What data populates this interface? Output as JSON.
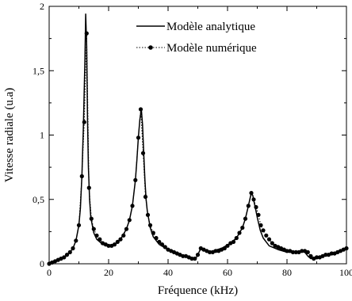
{
  "chart_data": {
    "type": "line",
    "title": "",
    "xlabel": "Fréquence (kHz)",
    "ylabel": "Vitesse radiale (u.a)",
    "xlim": [
      0,
      100
    ],
    "ylim": [
      0,
      2
    ],
    "x_ticks": [
      {
        "value": 0,
        "label": "0"
      },
      {
        "value": 20,
        "label": "20"
      },
      {
        "value": 40,
        "label": "40"
      },
      {
        "value": 60,
        "label": "60"
      },
      {
        "value": 80,
        "label": "80"
      },
      {
        "value": 100,
        "label": "100"
      }
    ],
    "y_ticks": [
      {
        "value": 0,
        "label": "0"
      },
      {
        "value": 0.5,
        "label": "0,5"
      },
      {
        "value": 1,
        "label": "1"
      },
      {
        "value": 1.5,
        "label": "1,5"
      },
      {
        "value": 2,
        "label": "2"
      }
    ],
    "grid": false,
    "legend_position": "top-right",
    "series": [
      {
        "name": "Modèle analytique",
        "style": "solid",
        "color": "#000000",
        "x": [
          0,
          3,
          5,
          7,
          8,
          9,
          10,
          10.5,
          11,
          11.5,
          12,
          12.3,
          12.6,
          12.9,
          13.2,
          13.6,
          14,
          15,
          16,
          18,
          20,
          22,
          24,
          26,
          27,
          28,
          29,
          29.5,
          30,
          30.5,
          31,
          31.4,
          31.8,
          32.2,
          32.6,
          33,
          34,
          35,
          37,
          40,
          43,
          46,
          48,
          49,
          50,
          51,
          52,
          53,
          55,
          58,
          61,
          63,
          65,
          66,
          67,
          67.5,
          68,
          68.5,
          69,
          69.5,
          70,
          71,
          72,
          74,
          77,
          80,
          83,
          85,
          86,
          87,
          88,
          90,
          93,
          96,
          100
        ],
        "y": [
          0.01,
          0.03,
          0.05,
          0.09,
          0.12,
          0.18,
          0.3,
          0.43,
          0.68,
          1.05,
          1.55,
          1.94,
          1.7,
          1.12,
          0.75,
          0.5,
          0.36,
          0.24,
          0.19,
          0.15,
          0.14,
          0.15,
          0.19,
          0.27,
          0.34,
          0.45,
          0.65,
          0.8,
          0.98,
          1.12,
          1.2,
          1.08,
          0.86,
          0.65,
          0.5,
          0.41,
          0.28,
          0.21,
          0.15,
          0.11,
          0.08,
          0.06,
          0.04,
          0.03,
          0.07,
          0.12,
          0.11,
          0.09,
          0.1,
          0.12,
          0.16,
          0.2,
          0.28,
          0.35,
          0.45,
          0.5,
          0.55,
          0.53,
          0.47,
          0.42,
          0.36,
          0.26,
          0.2,
          0.14,
          0.11,
          0.09,
          0.09,
          0.1,
          0.09,
          0.06,
          0.04,
          0.05,
          0.07,
          0.08,
          0.12
        ]
      },
      {
        "name": "Modèle numérique",
        "style": "dotted-markers",
        "color": "#000000",
        "x": [
          0,
          1,
          2,
          3,
          4,
          5,
          6,
          7,
          8,
          9,
          10,
          11,
          11.8,
          12.6,
          13.4,
          14.2,
          15,
          16,
          17,
          18,
          19,
          20,
          21,
          22,
          23,
          24,
          25,
          26,
          27,
          28,
          29,
          30,
          30.8,
          31.6,
          32.4,
          33.2,
          34,
          35,
          36,
          37,
          38,
          39,
          40,
          41,
          42,
          43,
          44,
          45,
          46,
          47,
          48,
          49,
          50,
          51,
          52,
          53,
          54,
          55,
          56,
          57,
          58,
          59,
          60,
          61,
          62,
          63,
          64,
          65,
          66,
          67,
          68,
          68.8,
          69.6,
          70.4,
          71.2,
          72,
          73,
          74,
          75,
          76,
          77,
          78,
          79,
          80,
          81,
          82,
          83,
          84,
          85,
          86,
          87,
          88,
          89,
          90,
          91,
          92,
          93,
          94,
          95,
          96,
          97,
          98,
          99,
          100
        ],
        "y": [
          0,
          0.01,
          0.02,
          0.03,
          0.04,
          0.05,
          0.07,
          0.09,
          0.12,
          0.18,
          0.3,
          0.68,
          1.1,
          1.79,
          0.59,
          0.35,
          0.27,
          0.22,
          0.19,
          0.16,
          0.15,
          0.14,
          0.14,
          0.15,
          0.17,
          0.19,
          0.22,
          0.27,
          0.34,
          0.45,
          0.65,
          0.98,
          1.2,
          0.86,
          0.52,
          0.38,
          0.3,
          0.24,
          0.2,
          0.17,
          0.15,
          0.13,
          0.11,
          0.1,
          0.09,
          0.08,
          0.07,
          0.06,
          0.06,
          0.05,
          0.04,
          0.04,
          0.07,
          0.12,
          0.11,
          0.1,
          0.09,
          0.09,
          0.1,
          0.1,
          0.11,
          0.12,
          0.14,
          0.16,
          0.17,
          0.2,
          0.24,
          0.28,
          0.35,
          0.45,
          0.55,
          0.5,
          0.44,
          0.38,
          0.3,
          0.26,
          0.22,
          0.19,
          0.16,
          0.14,
          0.13,
          0.12,
          0.11,
          0.1,
          0.1,
          0.09,
          0.09,
          0.09,
          0.1,
          0.1,
          0.09,
          0.06,
          0.04,
          0.05,
          0.05,
          0.06,
          0.07,
          0.07,
          0.08,
          0.08,
          0.09,
          0.1,
          0.11,
          0.12
        ]
      }
    ]
  }
}
